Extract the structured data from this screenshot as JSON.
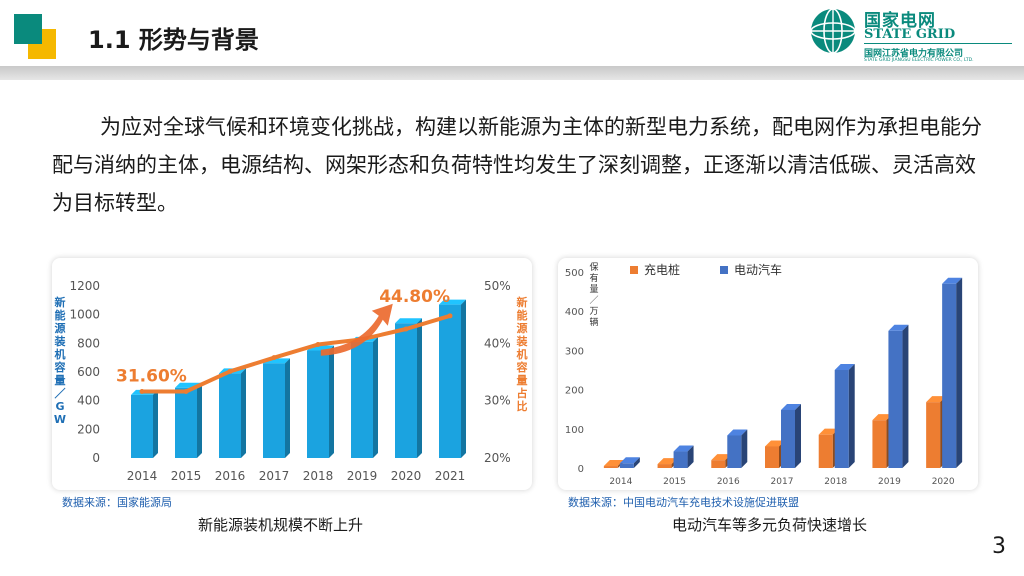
{
  "header": {
    "title": "1.1 形势与背景"
  },
  "logo": {
    "name_cn": "国家电网",
    "name_en": "STATE GRID",
    "company_cn": "国网江苏省电力有限公司",
    "company_en": "STATE GRID JIANGSU ELECTRIC POWER CO., LTD."
  },
  "body": {
    "paragraph": "为应对全球气候和环境变化挑战，构建以新能源为主体的新型电力系统，配电网作为承担电能分配与消纳的主体，电源结构、网架形态和负荷特性均发生了深刻调整，正逐渐以清洁低碳、灵活高效为目标转型。"
  },
  "left_panel": {
    "source": "数据来源：国家能源局",
    "caption": "新能源装机规模不断上升"
  },
  "right_panel": {
    "source": "数据来源：中国电动汽车充电技术设施促进联盟",
    "caption": "电动汽车等多元负荷快速增长"
  },
  "page_number": "3",
  "chart_data": [
    {
      "type": "bar",
      "categories": [
        "2014",
        "2015",
        "2016",
        "2017",
        "2018",
        "2019",
        "2020",
        "2021"
      ],
      "series": [
        {
          "name": "",
          "values": [
            440,
            490,
            590,
            660,
            750,
            810,
            940,
            1070
          ],
          "color": "#1ba3e0"
        },
        {
          "name": "",
          "type": "line",
          "axis": "right",
          "values": [
            31.6,
            31.6,
            35.1,
            37.5,
            39.8,
            40.7,
            42.5,
            44.8
          ],
          "color": "#ed7d31"
        }
      ],
      "ylabel": "新能源装机容量／GW",
      "y2label": "新能源装机容量占比",
      "ylim": [
        0,
        1200
      ],
      "yticks": [
        "0",
        "200",
        "400",
        "600",
        "800",
        "1000",
        "1200"
      ],
      "y2lim": [
        20,
        50
      ],
      "y2ticks": [
        "20%",
        "30%",
        "40%",
        "50%"
      ],
      "annotations": [
        "31.60%",
        "44.80%"
      ],
      "grid": false
    },
    {
      "type": "bar",
      "categories": [
        "2014",
        "2015",
        "2016",
        "2017",
        "2018",
        "2019",
        "2020"
      ],
      "series": [
        {
          "name": "充电桩",
          "values": [
            5,
            10,
            20,
            55,
            85,
            122,
            168
          ],
          "color": "#ed7d31"
        },
        {
          "name": "电动汽车",
          "values": [
            12,
            42,
            83,
            148,
            250,
            350,
            470
          ],
          "color": "#4472c4"
        }
      ],
      "ylabel": "保有量／万辆",
      "ylim": [
        0,
        500
      ],
      "yticks": [
        "0",
        "100",
        "200",
        "300",
        "400",
        "500"
      ],
      "legend": "top",
      "grid": false
    }
  ]
}
